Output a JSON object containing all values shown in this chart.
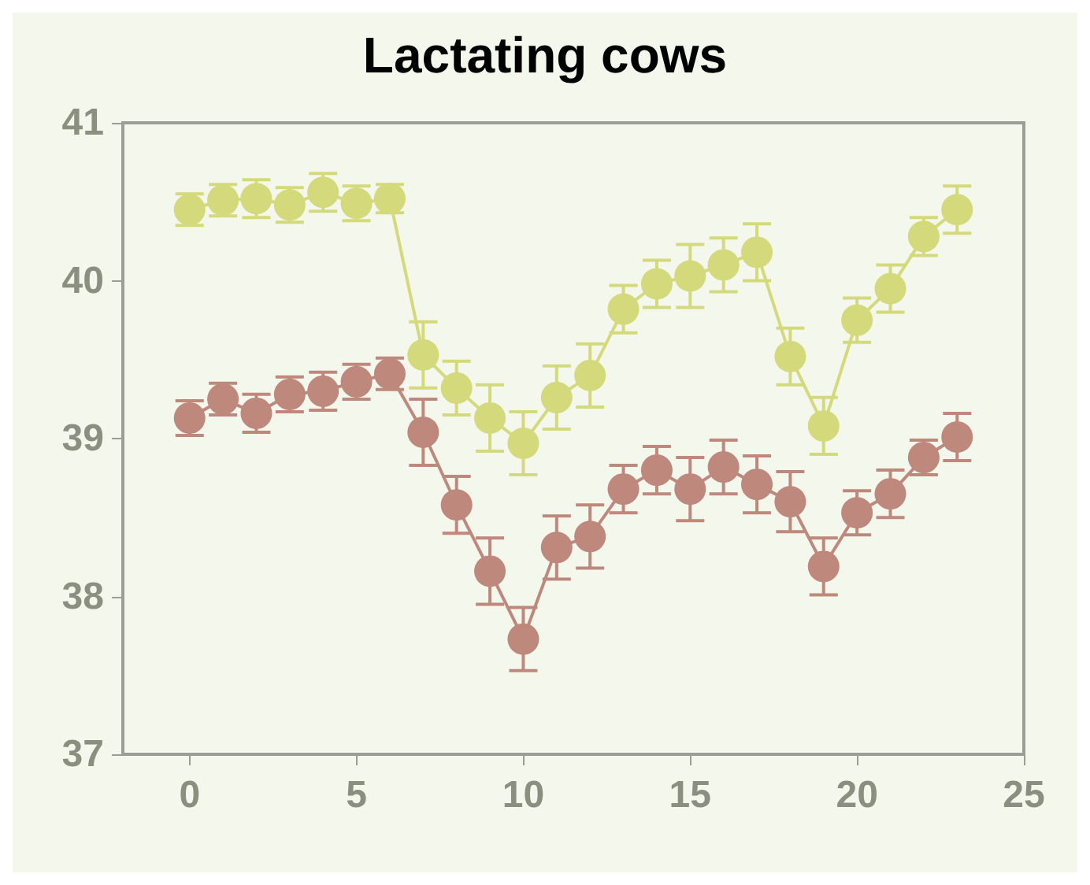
{
  "chart_data": {
    "type": "line",
    "title": "Lactating cows",
    "x": [
      0,
      1,
      2,
      3,
      4,
      5,
      6,
      7,
      8,
      9,
      10,
      11,
      12,
      13,
      14,
      15,
      16,
      17,
      18,
      19,
      20,
      21,
      22,
      23
    ],
    "series": [
      {
        "color": "#d4da7c",
        "values": [
          40.45,
          40.51,
          40.52,
          40.48,
          40.56,
          40.49,
          40.52,
          39.53,
          39.32,
          39.13,
          38.97,
          39.26,
          39.4,
          39.82,
          39.98,
          40.03,
          40.1,
          40.18,
          39.52,
          39.08,
          39.75,
          39.95,
          40.28,
          40.45
        ],
        "errors": [
          0.1,
          0.1,
          0.12,
          0.11,
          0.12,
          0.11,
          0.09,
          0.21,
          0.17,
          0.21,
          0.2,
          0.2,
          0.2,
          0.15,
          0.15,
          0.2,
          0.17,
          0.18,
          0.18,
          0.18,
          0.14,
          0.15,
          0.12,
          0.15
        ]
      },
      {
        "color": "#bf887c",
        "values": [
          39.13,
          39.25,
          39.16,
          39.28,
          39.3,
          39.36,
          39.41,
          39.04,
          38.58,
          38.16,
          37.73,
          38.31,
          38.38,
          38.68,
          38.8,
          38.68,
          38.82,
          38.71,
          38.6,
          38.19,
          38.53,
          38.65,
          38.88,
          39.01
        ],
        "errors": [
          0.11,
          0.1,
          0.12,
          0.11,
          0.12,
          0.11,
          0.1,
          0.21,
          0.18,
          0.21,
          0.2,
          0.2,
          0.2,
          0.15,
          0.15,
          0.2,
          0.17,
          0.18,
          0.19,
          0.18,
          0.14,
          0.15,
          0.11,
          0.15
        ]
      }
    ],
    "xlim": [
      -2,
      25
    ],
    "xticks": [
      0,
      5,
      10,
      15,
      20,
      25
    ],
    "ylim": [
      37,
      41
    ],
    "yticks": [
      37,
      38,
      39,
      40,
      41
    ],
    "grid": false,
    "marker": "circle",
    "line_style": "solid"
  }
}
